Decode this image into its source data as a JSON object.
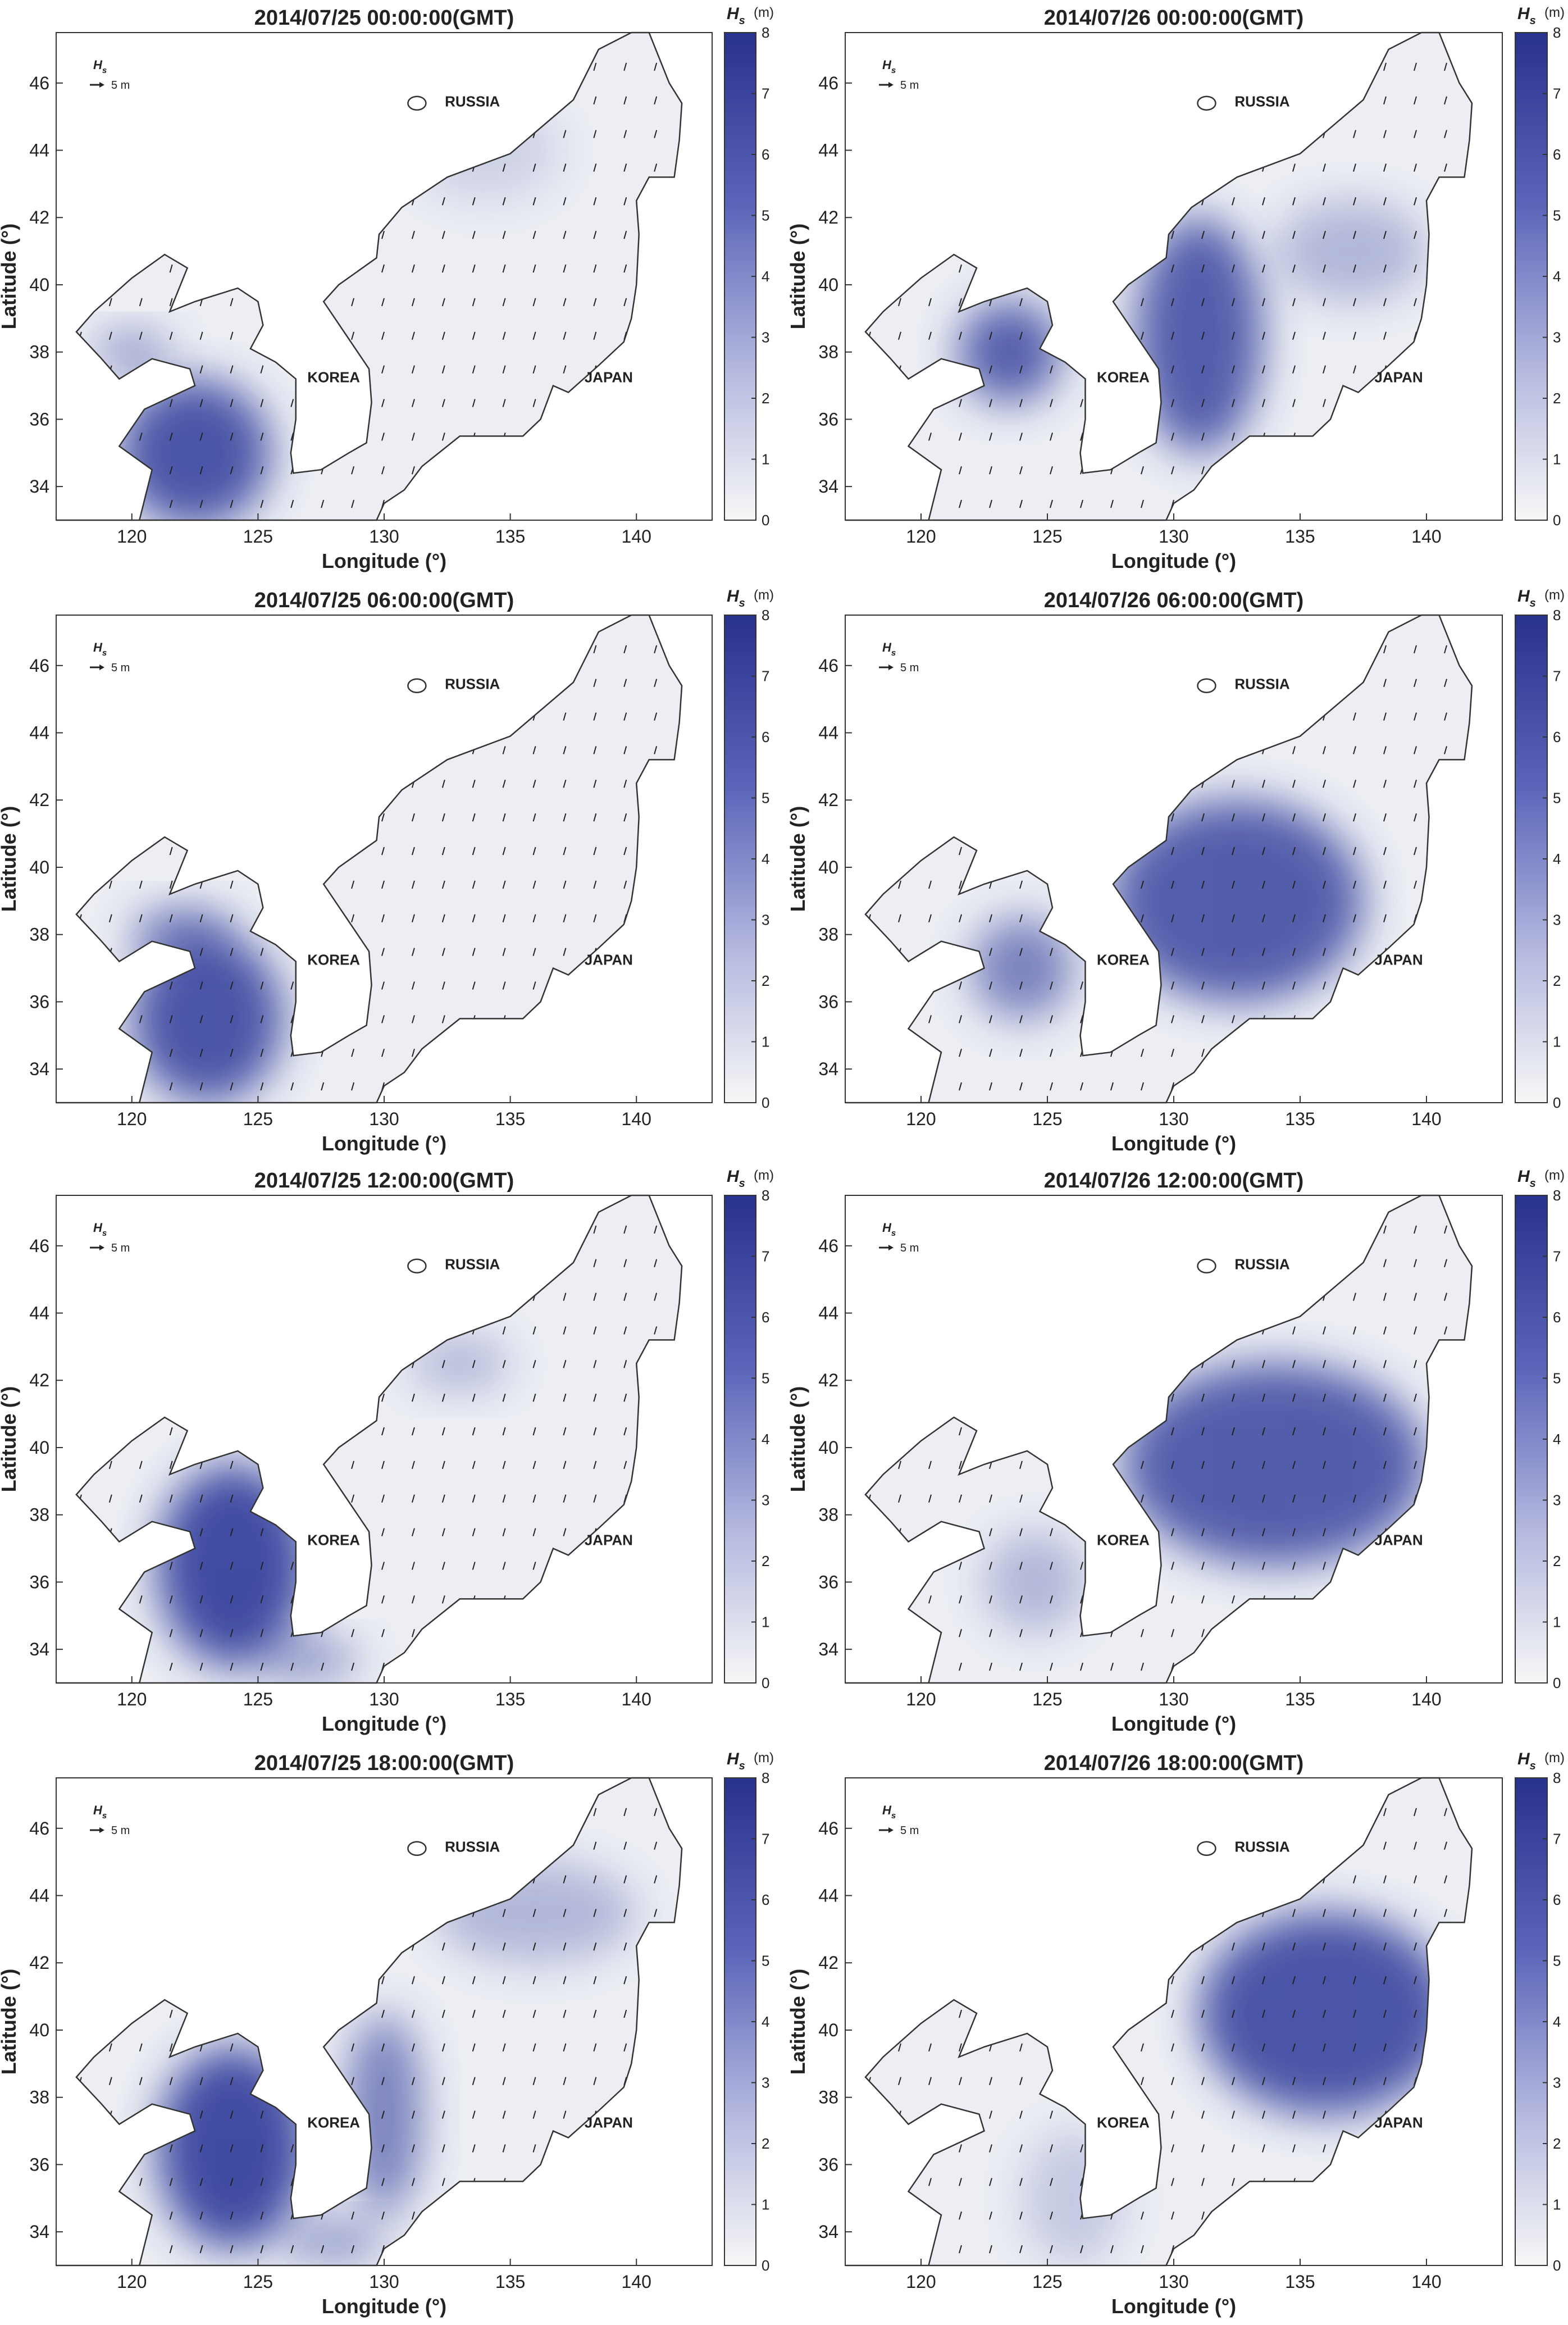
{
  "chart_data": [
    {
      "type": "map",
      "title": "2014/07/25 00:00:00(GMT)",
      "xlabel": "Longitude (°)",
      "ylabel": "Latitude (°)",
      "xlim": [
        117,
        143
      ],
      "ylim": [
        33,
        47.5
      ],
      "xticks": [
        120,
        125,
        130,
        135,
        140
      ],
      "yticks": [
        34,
        36,
        38,
        40,
        42,
        44,
        46
      ],
      "colorbar": {
        "label": "H",
        "label_sub": "s",
        "unit": "(m)",
        "clim": [
          0,
          8
        ],
        "ticks": [
          0,
          1,
          2,
          3,
          4,
          5,
          6,
          7,
          8
        ]
      },
      "legend": {
        "symbol": "H",
        "symbol_sub": "s",
        "text": "5 m"
      },
      "annotations": [
        "RUSSIA",
        "KOREA",
        "JAPAN"
      ]
    },
    {
      "type": "map",
      "title": "2014/07/26 00:00:00(GMT)",
      "xlabel": "Longitude (°)",
      "ylabel": "Latitude (°)",
      "xlim": [
        117,
        143
      ],
      "ylim": [
        33,
        47.5
      ],
      "xticks": [
        120,
        125,
        130,
        135,
        140
      ],
      "yticks": [
        34,
        36,
        38,
        40,
        42,
        44,
        46
      ],
      "colorbar": {
        "label": "H",
        "label_sub": "s",
        "unit": "(m)",
        "clim": [
          0,
          8
        ],
        "ticks": [
          0,
          1,
          2,
          3,
          4,
          5,
          6,
          7,
          8
        ]
      },
      "legend": {
        "symbol": "H",
        "symbol_sub": "s",
        "text": "5 m"
      },
      "annotations": [
        "RUSSIA",
        "KOREA",
        "JAPAN"
      ]
    },
    {
      "type": "map",
      "title": "2014/07/25 06:00:00(GMT)",
      "xlabel": "Longitude (°)",
      "ylabel": "Latitude (°)",
      "xlim": [
        117,
        143
      ],
      "ylim": [
        33,
        47.5
      ],
      "xticks": [
        120,
        125,
        130,
        135,
        140
      ],
      "yticks": [
        34,
        36,
        38,
        40,
        42,
        44,
        46
      ],
      "colorbar": {
        "label": "H",
        "label_sub": "s",
        "unit": "(m)",
        "clim": [
          0,
          8
        ],
        "ticks": [
          0,
          1,
          2,
          3,
          4,
          5,
          6,
          7,
          8
        ]
      },
      "legend": {
        "symbol": "H",
        "symbol_sub": "s",
        "text": "5 m"
      },
      "annotations": [
        "RUSSIA",
        "KOREA",
        "JAPAN"
      ]
    },
    {
      "type": "map",
      "title": "2014/07/26 06:00:00(GMT)",
      "xlabel": "Longitude (°)",
      "ylabel": "Latitude (°)",
      "xlim": [
        117,
        143
      ],
      "ylim": [
        33,
        47.5
      ],
      "xticks": [
        120,
        125,
        130,
        135,
        140
      ],
      "yticks": [
        34,
        36,
        38,
        40,
        42,
        44,
        46
      ],
      "colorbar": {
        "label": "H",
        "label_sub": "s",
        "unit": "(m)",
        "clim": [
          0,
          8
        ],
        "ticks": [
          0,
          1,
          2,
          3,
          4,
          5,
          6,
          7,
          8
        ]
      },
      "legend": {
        "symbol": "H",
        "symbol_sub": "s",
        "text": "5 m"
      },
      "annotations": [
        "RUSSIA",
        "KOREA",
        "JAPAN"
      ]
    },
    {
      "type": "map",
      "title": "2014/07/25 12:00:00(GMT)",
      "xlabel": "Longitude (°)",
      "ylabel": "Latitude (°)",
      "xlim": [
        117,
        143
      ],
      "ylim": [
        33,
        47.5
      ],
      "xticks": [
        120,
        125,
        130,
        135,
        140
      ],
      "yticks": [
        34,
        36,
        38,
        40,
        42,
        44,
        46
      ],
      "colorbar": {
        "label": "H",
        "label_sub": "s",
        "unit": "(m)",
        "clim": [
          0,
          8
        ],
        "ticks": [
          0,
          1,
          2,
          3,
          4,
          5,
          6,
          7,
          8
        ]
      },
      "legend": {
        "symbol": "H",
        "symbol_sub": "s",
        "text": "5 m"
      },
      "annotations": [
        "RUSSIA",
        "KOREA",
        "JAPAN"
      ]
    },
    {
      "type": "map",
      "title": "2014/07/26 12:00:00(GMT)",
      "xlabel": "Longitude (°)",
      "ylabel": "Latitude (°)",
      "xlim": [
        117,
        143
      ],
      "ylim": [
        33,
        47.5
      ],
      "xticks": [
        120,
        125,
        130,
        135,
        140
      ],
      "yticks": [
        34,
        36,
        38,
        40,
        42,
        44,
        46
      ],
      "colorbar": {
        "label": "H",
        "label_sub": "s",
        "unit": "(m)",
        "clim": [
          0,
          8
        ],
        "ticks": [
          0,
          1,
          2,
          3,
          4,
          5,
          6,
          7,
          8
        ]
      },
      "legend": {
        "symbol": "H",
        "symbol_sub": "s",
        "text": "5 m"
      },
      "annotations": [
        "RUSSIA",
        "KOREA",
        "JAPAN"
      ]
    },
    {
      "type": "map",
      "title": "2014/07/25 18:00:00(GMT)",
      "xlabel": "Longitude (°)",
      "ylabel": "Latitude (°)",
      "xlim": [
        117,
        143
      ],
      "ylim": [
        33,
        47.5
      ],
      "xticks": [
        120,
        125,
        130,
        135,
        140
      ],
      "yticks": [
        34,
        36,
        38,
        40,
        42,
        44,
        46
      ],
      "colorbar": {
        "label": "H",
        "label_sub": "s",
        "unit": "(m)",
        "clim": [
          0,
          8
        ],
        "ticks": [
          0,
          1,
          2,
          3,
          4,
          5,
          6,
          7,
          8
        ]
      },
      "legend": {
        "symbol": "H",
        "symbol_sub": "s",
        "text": "5 m"
      },
      "annotations": [
        "RUSSIA",
        "KOREA",
        "JAPAN"
      ]
    },
    {
      "type": "map",
      "title": "2014/07/26 18:00:00(GMT)",
      "xlabel": "Longitude (°)",
      "ylabel": "Latitude (°)",
      "xlim": [
        117,
        143
      ],
      "ylim": [
        33,
        47.5
      ],
      "xticks": [
        120,
        125,
        130,
        135,
        140
      ],
      "yticks": [
        34,
        36,
        38,
        40,
        42,
        44,
        46
      ],
      "colorbar": {
        "label": "H",
        "label_sub": "s",
        "unit": "(m)",
        "clim": [
          0,
          8
        ],
        "ticks": [
          0,
          1,
          2,
          3,
          4,
          5,
          6,
          7,
          8
        ]
      },
      "legend": {
        "symbol": "H",
        "symbol_sub": "s",
        "text": "5 m"
      },
      "annotations": [
        "RUSSIA",
        "KOREA",
        "JAPAN"
      ]
    }
  ]
}
